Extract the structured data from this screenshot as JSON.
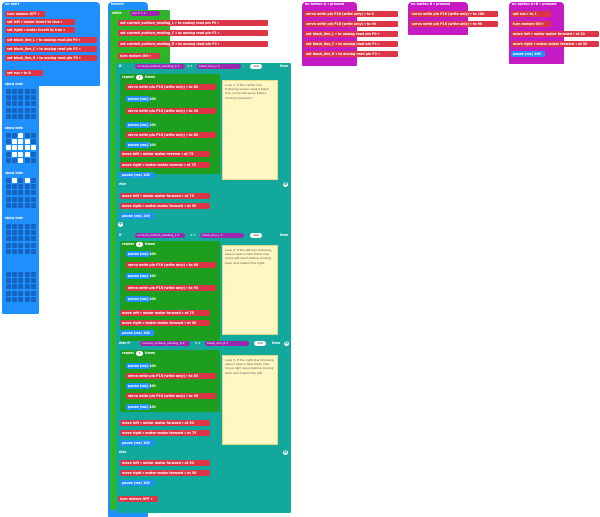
{
  "on_start": {
    "title": "on start",
    "blocks": [
      "turn motors OFF ▾",
      "set left ▾ motor invert to true ▾",
      "set right ▾ motor invert to true ▾",
      "set black_line_L ▾ to analog read pin P0 ▾",
      "set black_line_C ▾ to analog read pin P1 ▾",
      "set black_line_R ▾ to analog read pin P2 ▾",
      "set run ▾ to 0"
    ],
    "show_leds_label": "show leds",
    "led_patterns": [
      [
        0,
        0,
        0,
        0,
        0,
        0,
        0,
        0,
        0,
        0,
        0,
        0,
        0,
        0,
        0,
        0,
        0,
        0,
        0,
        0,
        0,
        0,
        0,
        0,
        0
      ],
      [
        0,
        0,
        1,
        0,
        0,
        0,
        1,
        1,
        1,
        0,
        1,
        1,
        1,
        1,
        1,
        0,
        1,
        1,
        1,
        0,
        0,
        0,
        1,
        0,
        0
      ],
      [
        0,
        1,
        0,
        1,
        0,
        0,
        0,
        0,
        0,
        0,
        0,
        0,
        0,
        0,
        0,
        0,
        0,
        0,
        0,
        0,
        0,
        0,
        0,
        0,
        0
      ],
      [
        0,
        0,
        0,
        0,
        0,
        0,
        0,
        0,
        0,
        0,
        0,
        0,
        0,
        0,
        0,
        0,
        0,
        0,
        0,
        0,
        0,
        0,
        0,
        0,
        0
      ]
    ]
  },
  "forever": {
    "title": "forever",
    "while_label": "while",
    "while_cond": "run ▾ = 1",
    "do_label": "do",
    "set_blocks": [
      "set current_surface_reading_L ▾ to analog read pin P0 ▾",
      "set current_surface_reading_C ▾ to analog read pin P1 ▾",
      "set current_surface_reading_R ▾ to analog read pin P2 ▾",
      "turn motors ON ▾"
    ],
    "if_label": "if",
    "then_label": "then",
    "else_if_label": "else if",
    "else_label": "else",
    "cond1": {
      "left": "current_surface_reading_C ▾",
      "op": "< ▾",
      "right": "black_line_C ▾",
      "value": "100"
    },
    "cond2": {
      "left": "current_surface_reading_L ▾",
      "op": "< ▾",
      "right": "black_line_L ▾",
      "value": "100"
    },
    "cond3": {
      "left": "current_surface_reading_R ▾",
      "op": "< ▾",
      "right": "black_line_R ▾",
      "value": "100"
    },
    "repeat_label": "repeat",
    "times_label": "times",
    "repeat_count": "2",
    "servo_rows": [
      "servo write pin P16 (write only) ▾ to 80",
      "pause (ms) 100",
      "servo write pin P16 (write only) ▾ to 90",
      "pause (ms) 100"
    ],
    "motor_rows_1": [
      "move left ▾ motor motor reverse ▾ at 75",
      "move right ▾ motor motor reverse ▾ at 75",
      "pause (ms) 100"
    ],
    "motor_rows_2": [
      "move left ▾ motor motor forward ▾ at 75",
      "move right ▾ motor motor forward ▾ at 50",
      "pause (ms) 100"
    ],
    "motor_rows_3": [
      "move left ▾ motor motor forward ▾ at 50",
      "move right ▾ motor motor forward ▾ at 75",
      "pause (ms) 100"
    ],
    "else_rows": [
      "move left ▾ motor motor forward ▾ at 50",
      "move right ▾ motor motor forward ▾ at 50",
      "pause (ms) 100"
    ],
    "final_block": "turn motors OFF ▾",
    "note1": "Loop 1: If the center line following sensor sees a black line, move the servo before moving backward.",
    "note2": "Loop 2: If the left line following sensor sees a dark black line, move left servo before moving back and toward the right.",
    "note3": "Loop 3: If the right line following sensor sees a dark black line, move right servo before moving back and toward the left."
  },
  "button_a": {
    "title": "on button A ▾ pressed",
    "rows": [
      "servo write pin P16 (write only) ▾ to 0",
      "servo write pin P16 (write only) ▾ to 90",
      "set black_line_L ▾ to analog read pin P0 ▾",
      "set black_line_C ▾ to analog read pin P1 ▾",
      "set black_line_R ▾ to analog read pin P2 ▾"
    ]
  },
  "button_b": {
    "title": "on button B ▾ pressed",
    "rows": [
      "servo write pin P16 (write only) ▾ to 180",
      "servo write pin P16 (write only) ▾ to 90"
    ]
  },
  "button_ab": {
    "title": "on button A+B ▾ pressed",
    "rows": [
      "set run ▾ to 1",
      "turn motors ON ▾",
      "move left ▾ motor motor forward ▾ at 50",
      "move right ▾ motor motor forward ▾ at 50",
      "pause (ms) 100"
    ]
  }
}
